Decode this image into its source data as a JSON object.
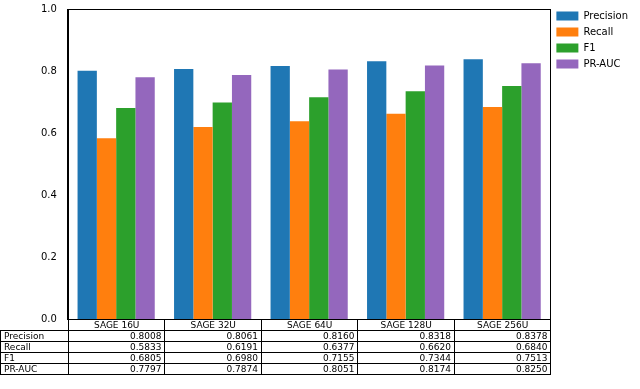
{
  "chart_data": {
    "type": "bar",
    "categories": [
      "SAGE 16U",
      "SAGE 32U",
      "SAGE 64U",
      "SAGE 128U",
      "SAGE 256U"
    ],
    "series": [
      {
        "name": "Precision",
        "color": "#1f77b4",
        "values": [
          0.8008,
          0.8061,
          0.816,
          0.8318,
          0.8378
        ],
        "value_labels": [
          "0.8008",
          "0.8061",
          "0.8160",
          "0.8318",
          "0.8378"
        ]
      },
      {
        "name": "Recall",
        "color": "#ff7f0e",
        "values": [
          0.5833,
          0.6191,
          0.6377,
          0.662,
          0.684
        ],
        "value_labels": [
          "0.5833",
          "0.6191",
          "0.6377",
          "0.6620",
          "0.6840"
        ]
      },
      {
        "name": "F1",
        "color": "#2ca02c",
        "values": [
          0.6805,
          0.698,
          0.7155,
          0.7344,
          0.7513
        ],
        "value_labels": [
          "0.6805",
          "0.6980",
          "0.7155",
          "0.7344",
          "0.7513"
        ]
      },
      {
        "name": "PR-AUC",
        "color": "#9467bd",
        "values": [
          0.7797,
          0.7874,
          0.8051,
          0.8174,
          0.825
        ],
        "value_labels": [
          "0.7797",
          "0.7874",
          "0.8051",
          "0.8174",
          "0.8250"
        ]
      }
    ],
    "ylim": [
      0,
      1
    ],
    "yticks": [
      {
        "value": 0,
        "label": "0.0"
      },
      {
        "value": 0.2,
        "label": "0.2"
      },
      {
        "value": 0.4,
        "label": "0.4"
      },
      {
        "value": 0.6,
        "label": "0.6"
      },
      {
        "value": 0.8,
        "label": "0.8"
      },
      {
        "value": 1,
        "label": "1.0"
      }
    ],
    "grid": false,
    "legend": "upper right",
    "tick_labels": "y"
  }
}
